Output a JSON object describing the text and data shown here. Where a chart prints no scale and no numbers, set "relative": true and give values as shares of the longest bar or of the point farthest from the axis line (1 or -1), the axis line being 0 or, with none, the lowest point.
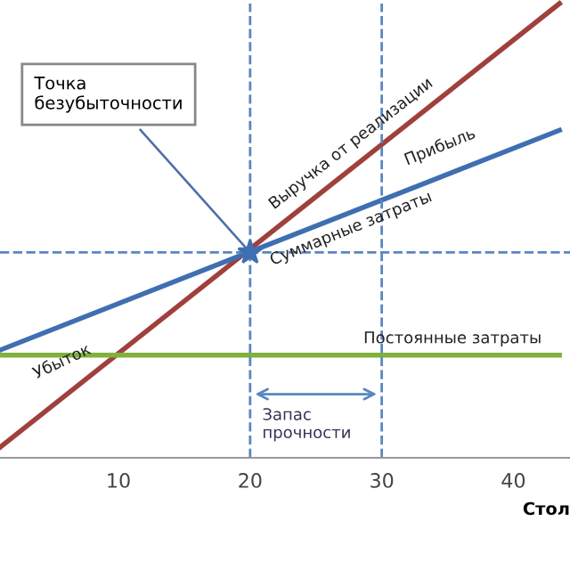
{
  "chart_data": {
    "type": "line",
    "relative": true,
    "xlabel": "Стол",
    "x": [
      1,
      43.5
    ],
    "xlim": [
      1,
      44.3
    ],
    "xticks": [
      10,
      20,
      30,
      40
    ],
    "grid": false,
    "marker": "none",
    "line_style": "solid",
    "series": [
      {
        "color": "#a0403c",
        "values": [
          0.023,
          1
        ]
      },
      {
        "color": "#3f6fb0",
        "values": [
          0.237,
          0.721
        ]
      },
      {
        "color": "#7fb13c",
        "values": [
          0.226,
          0.226
        ]
      }
    ],
    "ref_lines": [
      {
        "axis": "x",
        "value": 20,
        "color": "#5b86c0",
        "line_style": "dashed"
      },
      {
        "axis": "x",
        "value": 30,
        "color": "#5b86c0",
        "line_style": "dashed"
      },
      {
        "axis": "y",
        "value": 0.452,
        "color": "#5b86c0",
        "line_style": "dashed"
      }
    ],
    "annotations": [
      {
        "text": "Точка\nбезубыточности",
        "x": 20,
        "y": 0.452
      },
      "Выручка от реализации",
      "Прибыль",
      "Суммарные затраты",
      "Убыток",
      "Постоянные затраты",
      "Запас\nпрочности"
    ]
  }
}
